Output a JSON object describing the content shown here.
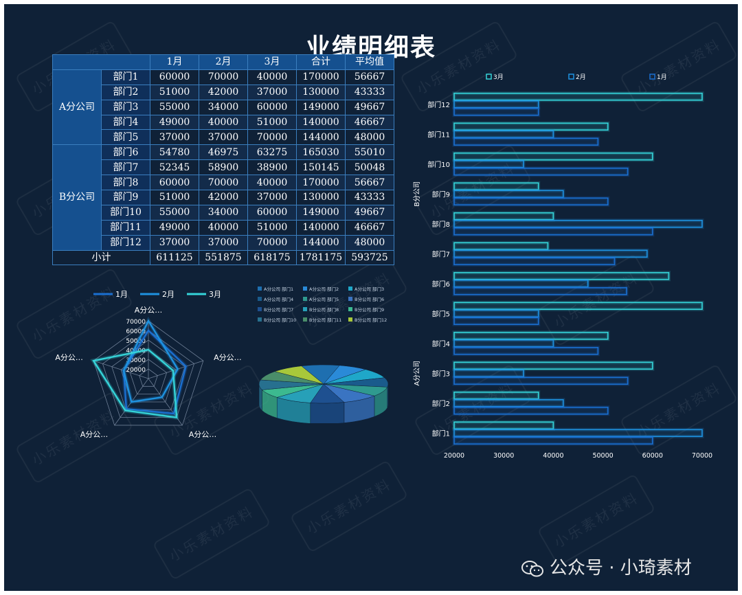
{
  "title": "业绩明细表",
  "watermark_text": "小乐素材资料",
  "footer": {
    "text": "公众号 · 小琦素材",
    "icon": "wechat-icon"
  },
  "colors": {
    "background": "#0f2137",
    "jan": "#1a6fd0",
    "feb": "#1e92e0",
    "mar": "#35d4d9"
  },
  "table": {
    "headers": [
      "1月",
      "2月",
      "3月",
      "合计",
      "平均值"
    ],
    "groups": [
      {
        "name": "A分公司",
        "rows": [
          {
            "dept": "部门1",
            "values": [
              "60000",
              "70000",
              "40000",
              "170000",
              "56667"
            ]
          },
          {
            "dept": "部门2",
            "values": [
              "51000",
              "42000",
              "37000",
              "130000",
              "43333"
            ]
          },
          {
            "dept": "部门3",
            "values": [
              "55000",
              "34000",
              "60000",
              "149000",
              "49667"
            ]
          },
          {
            "dept": "部门4",
            "values": [
              "49000",
              "40000",
              "51000",
              "140000",
              "46667"
            ]
          },
          {
            "dept": "部门5",
            "values": [
              "37000",
              "37000",
              "70000",
              "144000",
              "48000"
            ]
          }
        ]
      },
      {
        "name": "B分公司",
        "rows": [
          {
            "dept": "部门6",
            "values": [
              "54780",
              "46975",
              "63275",
              "165030",
              "55010"
            ]
          },
          {
            "dept": "部门7",
            "values": [
              "52345",
              "58900",
              "38900",
              "150145",
              "50048"
            ]
          },
          {
            "dept": "部门8",
            "values": [
              "60000",
              "70000",
              "40000",
              "170000",
              "56667"
            ]
          },
          {
            "dept": "部门9",
            "values": [
              "51000",
              "42000",
              "37000",
              "130000",
              "43333"
            ]
          },
          {
            "dept": "部门10",
            "values": [
              "55000",
              "34000",
              "60000",
              "149000",
              "49667"
            ]
          },
          {
            "dept": "部门11",
            "values": [
              "49000",
              "40000",
              "51000",
              "140000",
              "46667"
            ]
          },
          {
            "dept": "部门12",
            "values": [
              "37000",
              "37000",
              "70000",
              "144000",
              "48000"
            ]
          }
        ]
      }
    ],
    "total": {
      "label": "小计",
      "values": [
        "611125",
        "551875",
        "618175",
        "1781175",
        "593725"
      ]
    }
  },
  "chart_data": [
    {
      "type": "radar",
      "title": "",
      "axes": [
        "A分公…",
        "A分公…",
        "A分公…",
        "A分公…",
        "A分公…"
      ],
      "ticks": [
        20000,
        30000,
        40000,
        50000,
        60000,
        70000
      ],
      "range": [
        10000,
        70000
      ],
      "legend_position": "top",
      "series": [
        {
          "name": "1月",
          "values": [
            60000,
            51000,
            55000,
            49000,
            37000
          ]
        },
        {
          "name": "2月",
          "values": [
            70000,
            42000,
            34000,
            40000,
            37000
          ]
        },
        {
          "name": "3月",
          "values": [
            40000,
            37000,
            60000,
            51000,
            70000
          ]
        }
      ]
    },
    {
      "type": "pie",
      "title": "",
      "legend_position": "top",
      "labels": [
        "A分公司 部门1",
        "A分公司 部门2",
        "A分公司 部门3",
        "A分公司 部门4",
        "A分公司 部门5",
        "B分公司 部门6",
        "B分公司 部门7",
        "B分公司 部门8",
        "B分公司 部门9",
        "B分公司 部门10",
        "B分公司 部门11",
        "B分公司 部门12"
      ],
      "values": [
        170000,
        130000,
        149000,
        140000,
        144000,
        165030,
        150145,
        170000,
        130000,
        149000,
        140000,
        144000
      ],
      "colors": [
        "#1e6fb0",
        "#2a8ad8",
        "#1fa7c9",
        "#1a5b8c",
        "#2f9a8f",
        "#3a74c2",
        "#1e5090",
        "#27a0b8",
        "#3cb98f",
        "#27708f",
        "#4a8e6a",
        "#a8c83a"
      ]
    },
    {
      "type": "bar",
      "orientation": "horizontal",
      "title": "",
      "categories": [
        "部门1",
        "部门2",
        "部门3",
        "部门4",
        "部门5",
        "部门6",
        "部门7",
        "部门8",
        "部门9",
        "部门10",
        "部门11",
        "部门12"
      ],
      "groups": [
        {
          "name": "A分公司",
          "from": 0,
          "to": 4
        },
        {
          "name": "B分公司",
          "from": 5,
          "to": 11
        }
      ],
      "series": [
        {
          "name": "1月",
          "values": [
            60000,
            51000,
            55000,
            49000,
            37000,
            54780,
            52345,
            60000,
            51000,
            55000,
            49000,
            37000
          ]
        },
        {
          "name": "2月",
          "values": [
            70000,
            42000,
            34000,
            40000,
            37000,
            46975,
            58900,
            70000,
            42000,
            34000,
            40000,
            37000
          ]
        },
        {
          "name": "3月",
          "values": [
            40000,
            37000,
            60000,
            51000,
            70000,
            63275,
            38900,
            40000,
            37000,
            60000,
            51000,
            70000
          ]
        }
      ],
      "legend_order": [
        "3月",
        "2月",
        "1月"
      ],
      "legend_position": "top",
      "xlim": [
        20000,
        70000
      ],
      "xticks": [
        20000,
        30000,
        40000,
        50000,
        60000,
        70000
      ],
      "grid": false
    }
  ]
}
